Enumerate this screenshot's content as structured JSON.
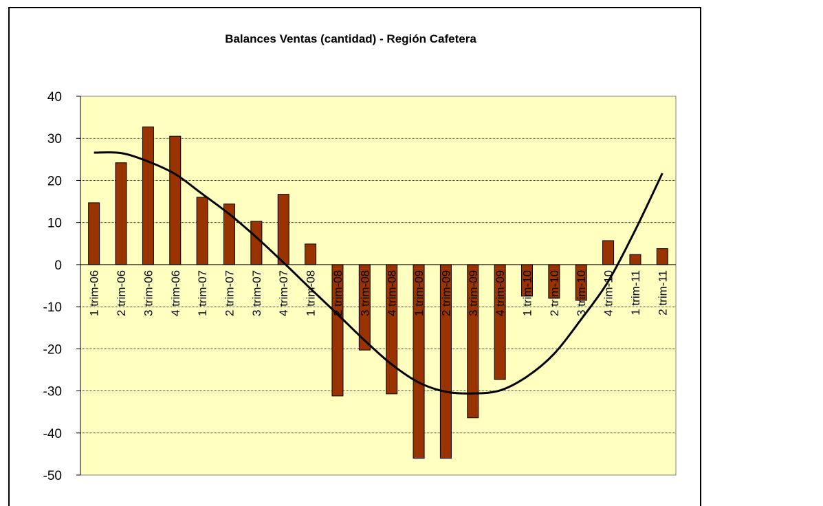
{
  "chart_data": {
    "type": "bar",
    "title": "Balances Ventas (cantidad) - Región Cafetera",
    "categories": [
      "1 trim-06",
      "2 trim-06",
      "3 trim-06",
      "4 trim-06",
      "1 trim-07",
      "2 trim-07",
      "3 trim-07",
      "4 trim-07",
      "1 trim-08",
      "2 trim-08",
      "3 trim-08",
      "4 trim-08",
      "1 trim-09",
      "2 trim-09",
      "3 trim-09",
      "4 trim-09",
      "1 trim-10",
      "2 trim-10",
      "3 trim-10",
      "4 trim-10",
      "1 trim-11",
      "2 trim-11"
    ],
    "values": [
      14.7,
      24.2,
      32.7,
      30.5,
      16,
      14.4,
      10.3,
      16.7,
      4.9,
      -31.2,
      -20.3,
      -30.7,
      -46,
      -46,
      -36.4,
      -27.3,
      -7.5,
      -8,
      -8.5,
      5.7,
      2.4,
      3.8
    ],
    "color": "#993300",
    "trend": {
      "color": "#000000",
      "values": [
        26.6,
        26.5,
        24.5,
        21.5,
        16.8,
        12,
        6.5,
        0.5,
        -5.7,
        -11.8,
        -18,
        -23.7,
        -28,
        -30.2,
        -30.6,
        -29.9,
        -26.6,
        -21.2,
        -13,
        -4,
        8.2,
        21.7
      ]
    },
    "ylim": [
      -50,
      40
    ],
    "yticks": [
      -50,
      -40,
      -30,
      -20,
      -10,
      0,
      10,
      20,
      30,
      40
    ],
    "grid": true,
    "plot_background": "#ffffc0"
  }
}
